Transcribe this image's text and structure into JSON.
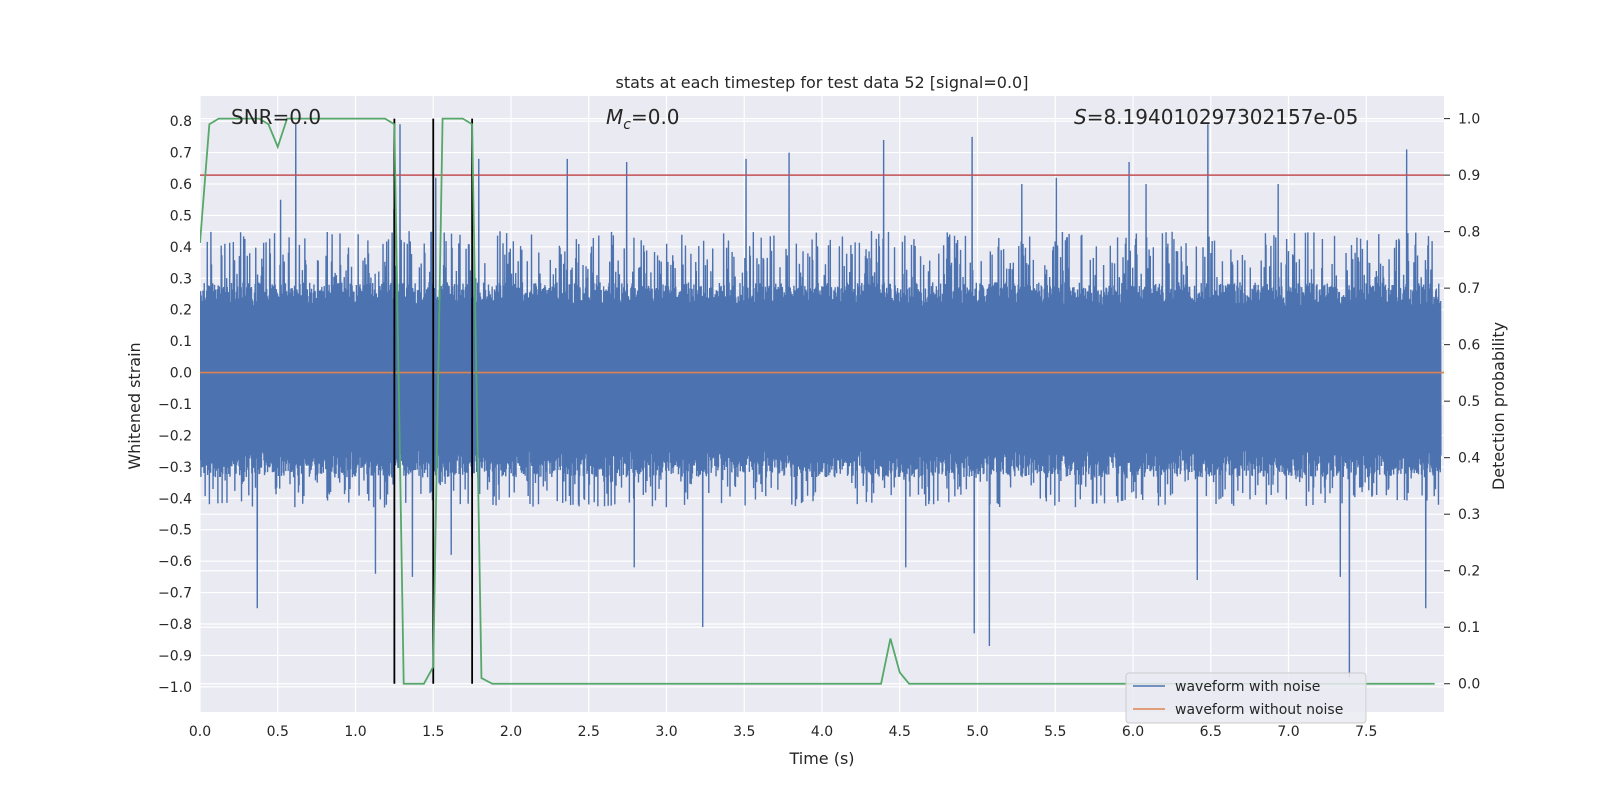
{
  "chart_data": {
    "type": "line",
    "title": "stats at each timestep for test data 52 [signal=0.0]",
    "xlabel": "Time (s)",
    "ylabel": "Whitened strain",
    "ylabel_right": "Detection probability",
    "xlim": [
      0.0,
      8.0
    ],
    "ylim": [
      -1.08,
      0.88
    ],
    "ylim_right": [
      -0.05,
      1.04
    ],
    "x_ticks": [
      0.0,
      0.5,
      1.0,
      1.5,
      2.0,
      2.5,
      3.0,
      3.5,
      4.0,
      4.5,
      5.0,
      5.5,
      6.0,
      6.5,
      7.0,
      7.5
    ],
    "x_tick_labels": [
      "0.0",
      "0.5",
      "1.0",
      "1.5",
      "2.0",
      "2.5",
      "3.0",
      "3.5",
      "4.0",
      "4.5",
      "5.0",
      "5.5",
      "6.0",
      "6.5",
      "7.0",
      "7.5"
    ],
    "y_ticks": [
      0.8,
      0.7,
      0.6,
      0.5,
      0.4,
      0.3,
      0.2,
      0.1,
      0.0,
      -0.1,
      -0.2,
      -0.3,
      -0.4,
      -0.5,
      -0.6,
      -0.7,
      -0.8,
      -0.9,
      -1.0
    ],
    "y_tick_labels": [
      "0.8",
      "0.7",
      "0.6",
      "0.5",
      "0.4",
      "0.3",
      "0.2",
      "0.1",
      "0.0",
      "−0.1",
      "−0.2",
      "−0.3",
      "−0.4",
      "−0.5",
      "−0.6",
      "−0.7",
      "−0.8",
      "−0.9",
      "−1.0"
    ],
    "y_ticks_right": [
      1.0,
      0.9,
      0.8,
      0.7,
      0.6,
      0.5,
      0.4,
      0.3,
      0.2,
      0.1,
      0.0
    ],
    "y_tick_labels_right": [
      "1.0",
      "0.9",
      "0.8",
      "0.7",
      "0.6",
      "0.5",
      "0.4",
      "0.3",
      "0.2",
      "0.1",
      "0.0"
    ],
    "grid": true,
    "legend_position": "lower-right",
    "annotations": {
      "snr": "SNR=0.0",
      "mc_symbol": "M",
      "mc_sub": "c",
      "mc_value": "=0.0",
      "s_symbol": "S",
      "s_value": "=8.194010297302157e-05"
    },
    "threshold": {
      "value_right": 0.9,
      "color": "#c44e52"
    },
    "vertical_lines": {
      "x": [
        1.25,
        1.5,
        1.75
      ],
      "color": "#000000"
    },
    "series": [
      {
        "name": "waveform with noise",
        "color": "#4c72b0",
        "noise": {
          "samples": 4096,
          "dense_band": [
            -0.29,
            0.25
          ],
          "typical_peak": [
            0.3,
            0.45
          ],
          "spikes": [
            [
              0.37,
              -0.75
            ],
            [
              0.52,
              0.55
            ],
            [
              0.62,
              0.79
            ],
            [
              1.13,
              -0.64
            ],
            [
              1.25,
              0.52
            ],
            [
              1.29,
              0.79
            ],
            [
              1.37,
              -0.65
            ],
            [
              1.52,
              0.62
            ],
            [
              1.62,
              -0.58
            ],
            [
              1.8,
              0.68
            ],
            [
              2.37,
              0.68
            ],
            [
              2.75,
              0.67
            ],
            [
              2.8,
              -0.62
            ],
            [
              3.24,
              -0.81
            ],
            [
              3.52,
              0.68
            ],
            [
              3.8,
              0.7
            ],
            [
              4.41,
              0.74
            ],
            [
              4.55,
              -0.62
            ],
            [
              4.98,
              0.75
            ],
            [
              4.99,
              -0.83
            ],
            [
              5.09,
              -0.87
            ],
            [
              5.3,
              0.6
            ],
            [
              5.52,
              0.62
            ],
            [
              5.99,
              0.67
            ],
            [
              6.1,
              0.6
            ],
            [
              6.43,
              -0.66
            ],
            [
              6.5,
              0.79
            ],
            [
              6.95,
              0.6
            ],
            [
              7.35,
              -0.65
            ],
            [
              7.41,
              -0.97
            ],
            [
              7.78,
              0.71
            ],
            [
              7.9,
              -0.75
            ]
          ]
        }
      },
      {
        "name": "waveform without noise",
        "color": "#dd8452",
        "x": [
          0.0,
          8.0
        ],
        "y": [
          0.0,
          0.0
        ]
      },
      {
        "name": "detection probability",
        "color": "#55a868",
        "axis": "right",
        "x": [
          0.0,
          0.06,
          0.12,
          0.25,
          0.38,
          0.44,
          0.5,
          0.56,
          0.62,
          0.75,
          1.0,
          1.12,
          1.19,
          1.25,
          1.31,
          1.38,
          1.44,
          1.5,
          1.56,
          1.62,
          1.69,
          1.75,
          1.81,
          1.88,
          2.0,
          2.5,
          3.0,
          3.5,
          4.0,
          4.31,
          4.38,
          4.44,
          4.5,
          4.56,
          4.62,
          5.0,
          6.0,
          7.0,
          7.5,
          7.94
        ],
        "y": [
          0.78,
          0.99,
          1.0,
          1.0,
          1.0,
          0.99,
          0.95,
          1.0,
          1.0,
          1.0,
          1.0,
          1.0,
          1.0,
          0.99,
          0.0,
          0.0,
          0.0,
          0.03,
          1.0,
          1.0,
          1.0,
          0.99,
          0.01,
          0.0,
          0.0,
          0.0,
          0.0,
          0.0,
          0.0,
          0.0,
          0.0,
          0.08,
          0.02,
          0.0,
          0.0,
          0.0,
          0.0,
          0.0,
          0.0,
          0.0
        ]
      }
    ]
  }
}
